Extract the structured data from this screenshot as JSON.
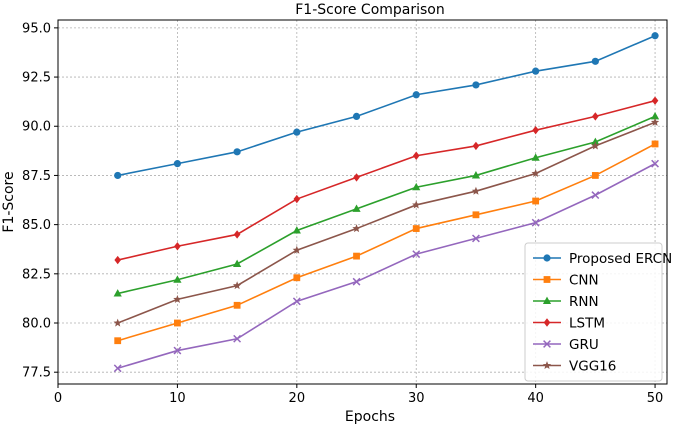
{
  "chart_data": {
    "type": "line",
    "title": "F1-Score Comparison",
    "xlabel": "Epochs",
    "ylabel": "F1-Score",
    "xlim": [
      0,
      51
    ],
    "ylim": [
      76.9,
      95.4
    ],
    "xticks": [
      0,
      10,
      20,
      30,
      40,
      50
    ],
    "yticks": [
      77.5,
      80.0,
      82.5,
      85.0,
      87.5,
      90.0,
      92.5,
      95.0
    ],
    "x": [
      5,
      10,
      15,
      20,
      25,
      30,
      35,
      40,
      45,
      50
    ],
    "grid": true,
    "legend_position": "lower-right",
    "series": [
      {
        "name": "Proposed ERCN",
        "color": "#1f77b4",
        "marker": "circle",
        "values": [
          87.5,
          88.1,
          88.7,
          89.7,
          90.5,
          91.6,
          92.1,
          92.8,
          93.3,
          94.6
        ]
      },
      {
        "name": "CNN",
        "color": "#ff7f0e",
        "marker": "square",
        "values": [
          79.1,
          80.0,
          80.9,
          82.3,
          83.4,
          84.8,
          85.5,
          86.2,
          87.5,
          89.1
        ]
      },
      {
        "name": "RNN",
        "color": "#2ca02c",
        "marker": "triangle",
        "values": [
          81.5,
          82.2,
          83.0,
          84.7,
          85.8,
          86.9,
          87.5,
          88.4,
          89.2,
          90.5
        ]
      },
      {
        "name": "LSTM",
        "color": "#d62728",
        "marker": "diamond",
        "values": [
          83.2,
          83.9,
          84.5,
          86.3,
          87.4,
          88.5,
          89.0,
          89.8,
          90.5,
          91.3
        ]
      },
      {
        "name": "GRU",
        "color": "#9467bd",
        "marker": "x",
        "values": [
          77.7,
          78.6,
          79.2,
          81.1,
          82.1,
          83.5,
          84.3,
          85.1,
          86.5,
          88.1
        ]
      },
      {
        "name": "VGG16",
        "color": "#8c564b",
        "marker": "star",
        "values": [
          80.0,
          81.2,
          81.9,
          83.7,
          84.8,
          86.0,
          86.7,
          87.6,
          89.0,
          90.2
        ]
      }
    ]
  }
}
